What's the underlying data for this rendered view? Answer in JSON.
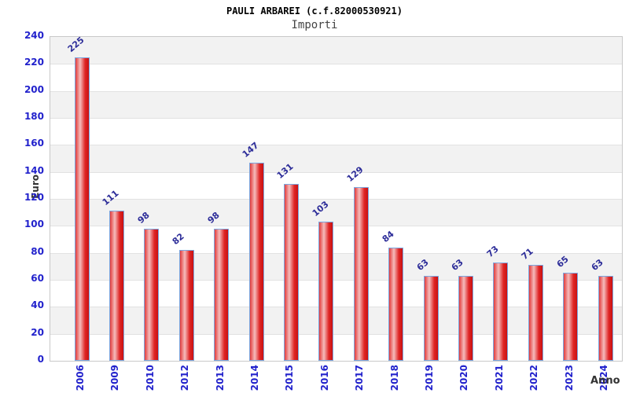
{
  "header": {
    "title": "PAULI ARBAREI (c.f.82000530921)",
    "subtitle": "Importi"
  },
  "chart_data": {
    "type": "bar",
    "title": "PAULI ARBAREI (c.f.82000530921)",
    "subtitle": "Importi",
    "xlabel": "Anno",
    "ylabel": "Euro",
    "categories": [
      "2006",
      "2009",
      "2010",
      "2012",
      "2013",
      "2014",
      "2015",
      "2016",
      "2017",
      "2018",
      "2019",
      "2020",
      "2021",
      "2022",
      "2023",
      "2024"
    ],
    "values": [
      225,
      111,
      98,
      82,
      98,
      147,
      131,
      103,
      129,
      84,
      63,
      63,
      73,
      71,
      65,
      63
    ],
    "ylim": [
      0,
      240
    ],
    "ytick_step": 20,
    "grid": "horizontal-bands-alternating",
    "legend": "none",
    "value_labels": "above-bars-rotated",
    "colors": {
      "bar_gradient_left": "#e23b3b",
      "bar_gradient_highlight": "#f5bcbc",
      "bar_gradient_mid": "#df2525",
      "bar_gradient_right": "#c91111",
      "bar_border": "#7ba7e0",
      "tick_label": "#2222cc",
      "value_label": "#2d2d99",
      "axis_title": "#333333",
      "band_gray": "#f2f2f2",
      "band_white": "#ffffff",
      "grid_line": "#e2e2e2",
      "plot_border": "#c8c8c8",
      "title_color": "#000000",
      "subtitle_color": "#444444"
    }
  }
}
